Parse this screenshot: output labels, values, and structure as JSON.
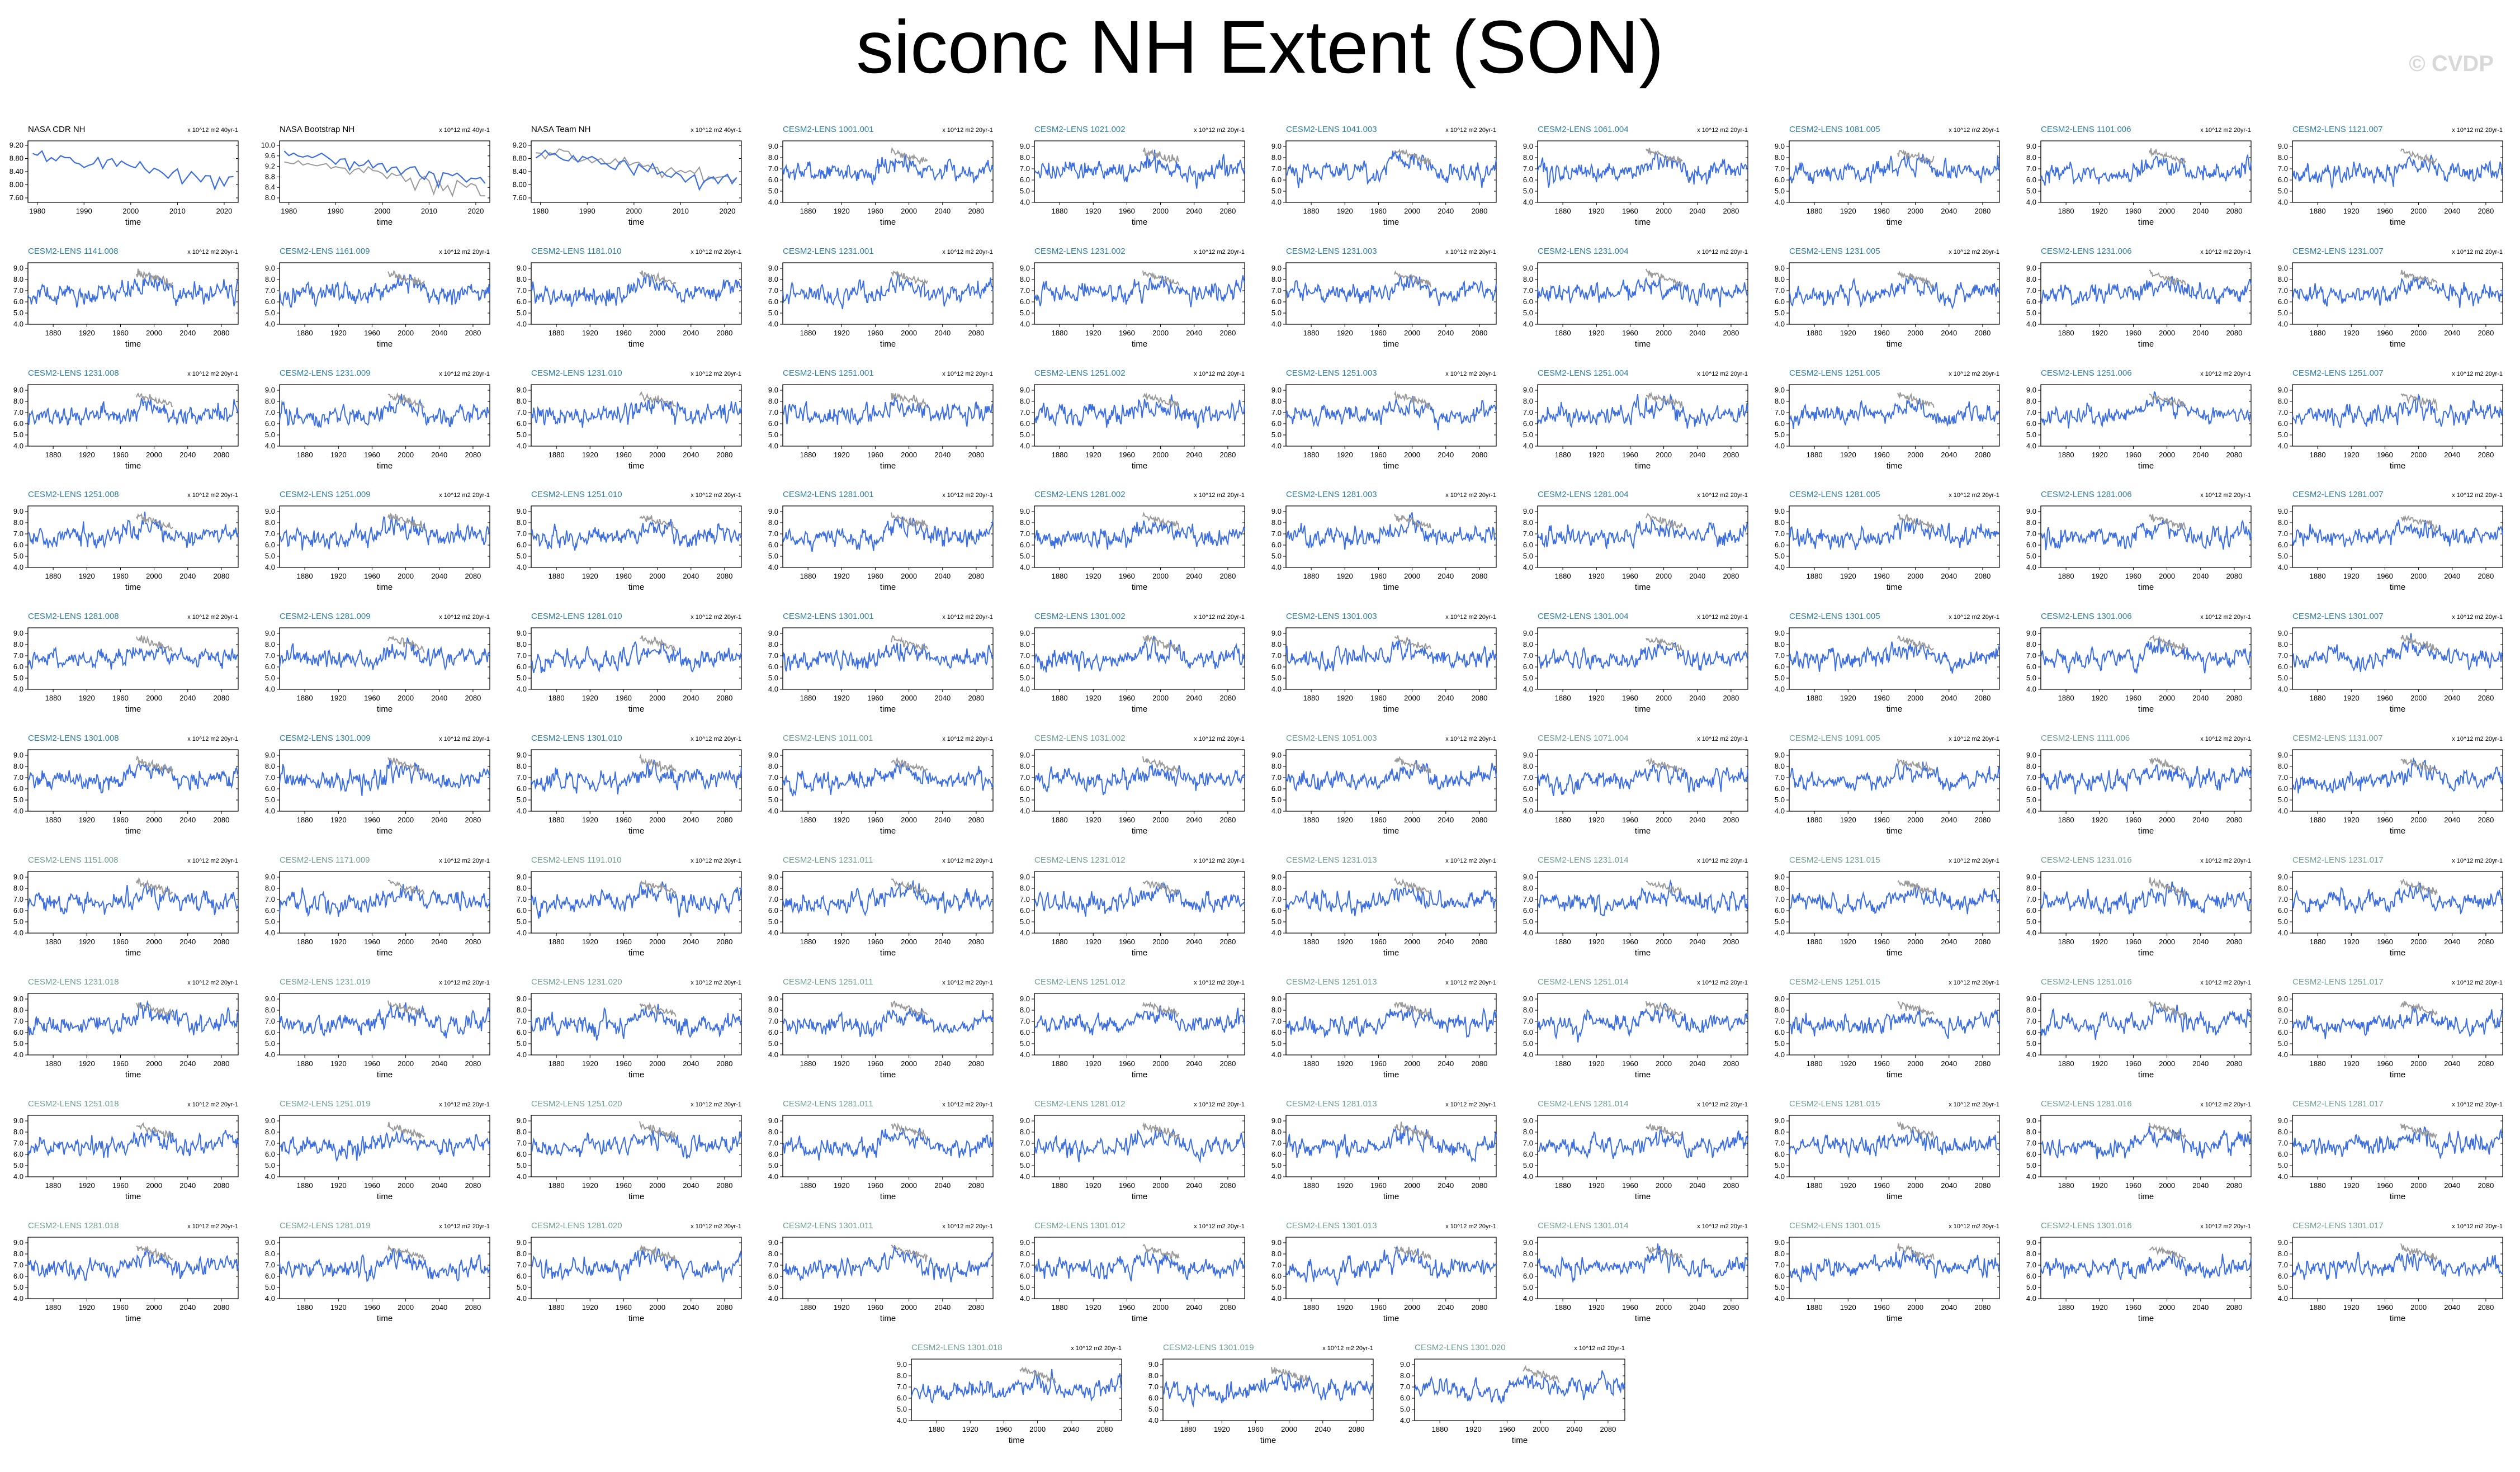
{
  "title": "siconc NH Extent (SON)",
  "watermark": "© CVDP",
  "colors": {
    "model": "#3c6ee0",
    "obs": "#9a9a9a",
    "title_a": "#2f7f9e",
    "title_b": "#6d9f93"
  },
  "chart_data": {
    "type": "line",
    "xlabel": "time",
    "units": "x 10^12 m2 20yr-1",
    "obs_units": "x 10^12 m2 40yr-1",
    "obs_panels": [
      {
        "title": "NASA CDR NH",
        "xticks": [
          "1980",
          "1990",
          "2000",
          "2010",
          "2020"
        ],
        "yticks": [
          "7.60",
          "8.00",
          "8.40",
          "8.80",
          "9.20"
        ]
      },
      {
        "title": "NASA Bootstrap NH",
        "xticks": [
          "1980",
          "1990",
          "2000",
          "2010",
          "2020"
        ],
        "yticks": [
          "8.0",
          "8.4",
          "8.8",
          "9.2",
          "9.6",
          "10.0"
        ]
      },
      {
        "title": "NASA Team NH",
        "xticks": [
          "1980",
          "1990",
          "2000",
          "2010",
          "2020"
        ],
        "yticks": [
          "7.60",
          "8.00",
          "8.40",
          "8.80",
          "9.20"
        ]
      }
    ],
    "model_xticks": [
      "1880",
      "1920",
      "1960",
      "2000",
      "2040",
      "2080"
    ],
    "model_yticks": [
      "4.0",
      "5.0",
      "6.0",
      "7.0",
      "8.0",
      "9.0"
    ],
    "model_ylim": [
      4.0,
      9.5
    ],
    "model_panels": [
      "CESM2-LENS 1001.001",
      "CESM2-LENS 1021.002",
      "CESM2-LENS 1041.003",
      "CESM2-LENS 1061.004",
      "CESM2-LENS 1081.005",
      "CESM2-LENS 1101.006",
      "CESM2-LENS 1121.007",
      "CESM2-LENS 1141.008",
      "CESM2-LENS 1161.009",
      "CESM2-LENS 1181.010",
      "CESM2-LENS 1231.001",
      "CESM2-LENS 1231.002",
      "CESM2-LENS 1231.003",
      "CESM2-LENS 1231.004",
      "CESM2-LENS 1231.005",
      "CESM2-LENS 1231.006",
      "CESM2-LENS 1231.007",
      "CESM2-LENS 1231.008",
      "CESM2-LENS 1231.009",
      "CESM2-LENS 1231.010",
      "CESM2-LENS 1251.001",
      "CESM2-LENS 1251.002",
      "CESM2-LENS 1251.003",
      "CESM2-LENS 1251.004",
      "CESM2-LENS 1251.005",
      "CESM2-LENS 1251.006",
      "CESM2-LENS 1251.007",
      "CESM2-LENS 1251.008",
      "CESM2-LENS 1251.009",
      "CESM2-LENS 1251.010",
      "CESM2-LENS 1281.001",
      "CESM2-LENS 1281.002",
      "CESM2-LENS 1281.003",
      "CESM2-LENS 1281.004",
      "CESM2-LENS 1281.005",
      "CESM2-LENS 1281.006",
      "CESM2-LENS 1281.007",
      "CESM2-LENS 1281.008",
      "CESM2-LENS 1281.009",
      "CESM2-LENS 1281.010",
      "CESM2-LENS 1301.001",
      "CESM2-LENS 1301.002",
      "CESM2-LENS 1301.003",
      "CESM2-LENS 1301.004",
      "CESM2-LENS 1301.005",
      "CESM2-LENS 1301.006",
      "CESM2-LENS 1301.007",
      "CESM2-LENS 1301.008",
      "CESM2-LENS 1301.009",
      "CESM2-LENS 1301.010",
      "CESM2-LENS 1011.001",
      "CESM2-LENS 1031.002",
      "CESM2-LENS 1051.003",
      "CESM2-LENS 1071.004",
      "CESM2-LENS 1091.005",
      "CESM2-LENS 1111.006",
      "CESM2-LENS 1131.007",
      "CESM2-LENS 1151.008",
      "CESM2-LENS 1171.009",
      "CESM2-LENS 1191.010",
      "CESM2-LENS 1231.011",
      "CESM2-LENS 1231.012",
      "CESM2-LENS 1231.013",
      "CESM2-LENS 1231.014",
      "CESM2-LENS 1231.015",
      "CESM2-LENS 1231.016",
      "CESM2-LENS 1231.017",
      "CESM2-LENS 1231.018",
      "CESM2-LENS 1231.019",
      "CESM2-LENS 1231.020",
      "CESM2-LENS 1251.011",
      "CESM2-LENS 1251.012",
      "CESM2-LENS 1251.013",
      "CESM2-LENS 1251.014",
      "CESM2-LENS 1251.015",
      "CESM2-LENS 1251.016",
      "CESM2-LENS 1251.017",
      "CESM2-LENS 1251.018",
      "CESM2-LENS 1251.019",
      "CESM2-LENS 1251.020",
      "CESM2-LENS 1281.011",
      "CESM2-LENS 1281.012",
      "CESM2-LENS 1281.013",
      "CESM2-LENS 1281.014",
      "CESM2-LENS 1281.015",
      "CESM2-LENS 1281.016",
      "CESM2-LENS 1281.017",
      "CESM2-LENS 1281.018",
      "CESM2-LENS 1281.019",
      "CESM2-LENS 1281.020",
      "CESM2-LENS 1301.011",
      "CESM2-LENS 1301.012",
      "CESM2-LENS 1301.013",
      "CESM2-LENS 1301.014",
      "CESM2-LENS 1301.015",
      "CESM2-LENS 1301.016",
      "CESM2-LENS 1301.017",
      "CESM2-LENS 1301.018",
      "CESM2-LENS 1301.019",
      "CESM2-LENS 1301.020"
    ]
  }
}
